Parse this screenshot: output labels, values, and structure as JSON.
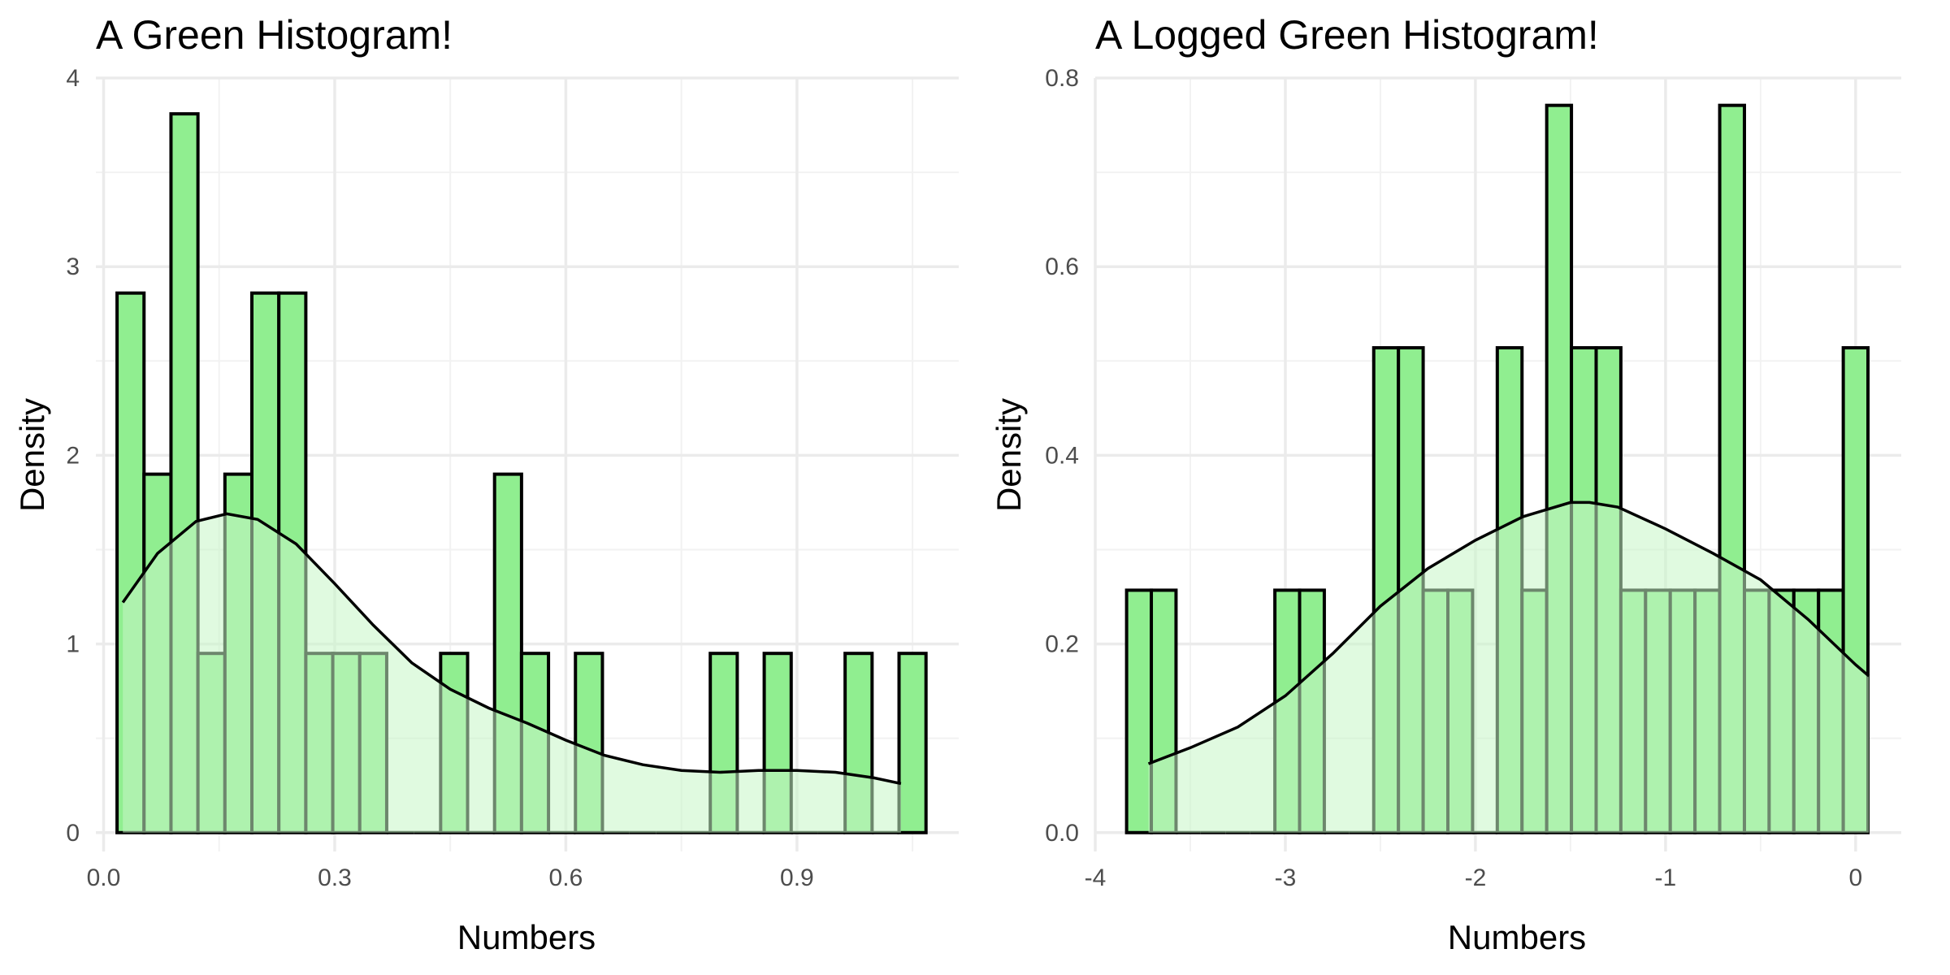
{
  "colors": {
    "bar_fill": "#90ee90",
    "density_fill": "#c6f6c6",
    "bar_outline": "#000000"
  },
  "chart_data": [
    {
      "type": "histogram",
      "title": "A Green Histogram!",
      "xlabel": "Numbers",
      "ylabel": "Density",
      "xlim": [
        -0.01,
        1.11
      ],
      "ylim": [
        -0.1,
        4.0
      ],
      "x_ticks": [
        0.0,
        0.3,
        0.6,
        0.9
      ],
      "x_tick_labels": [
        "0.0",
        "0.3",
        "0.6",
        "0.9"
      ],
      "y_ticks": [
        0,
        1,
        2,
        3,
        4
      ],
      "y_tick_labels": [
        "0",
        "1",
        "2",
        "3",
        "4"
      ],
      "grid": true,
      "bin_start": 0.0175,
      "bin_width": 0.035,
      "densities": [
        2.86,
        1.9,
        3.81,
        0.95,
        1.9,
        2.86,
        2.86,
        0.95,
        0.95,
        0.95,
        0,
        0,
        0.95,
        0,
        1.9,
        0.95,
        0,
        0.95,
        0,
        0,
        0,
        0,
        0.95,
        0,
        0.95,
        0,
        0,
        0.95,
        0,
        0.95
      ],
      "density_curve": {
        "x": [
          0.025,
          0.07,
          0.12,
          0.16,
          0.2,
          0.25,
          0.3,
          0.35,
          0.4,
          0.45,
          0.5,
          0.55,
          0.6,
          0.65,
          0.7,
          0.75,
          0.8,
          0.85,
          0.9,
          0.95,
          1.0,
          1.035
        ],
        "y": [
          1.22,
          1.48,
          1.65,
          1.69,
          1.66,
          1.53,
          1.32,
          1.1,
          0.9,
          0.76,
          0.66,
          0.58,
          0.49,
          0.41,
          0.36,
          0.33,
          0.32,
          0.33,
          0.33,
          0.32,
          0.29,
          0.26
        ]
      }
    },
    {
      "type": "histogram",
      "title": "A Logged Green Histogram!",
      "xlabel": "Numbers",
      "ylabel": "Density",
      "xlim": [
        -4.0,
        0.24
      ],
      "ylim": [
        -0.02,
        0.8
      ],
      "x_ticks": [
        -4,
        -3,
        -2,
        -1,
        0
      ],
      "x_tick_labels": [
        "-4",
        "-3",
        "-2",
        "-1",
        "0"
      ],
      "y_ticks": [
        0.0,
        0.2,
        0.4,
        0.6,
        0.8
      ],
      "y_tick_labels": [
        "0.0",
        "0.2",
        "0.4",
        "0.6",
        "0.8"
      ],
      "grid": true,
      "bin_start": -3.835,
      "bin_width": 0.13,
      "densities": [
        0.257,
        0.257,
        0,
        0,
        0,
        0,
        0.257,
        0.257,
        0,
        0,
        0.514,
        0.514,
        0.257,
        0.257,
        0,
        0.514,
        0.257,
        0.771,
        0.514,
        0.514,
        0.257,
        0.257,
        0.257,
        0.257,
        0.771,
        0.257,
        0.257,
        0.257,
        0.257,
        0.514
      ],
      "density_curve": {
        "x": [
          -3.72,
          -3.5,
          -3.25,
          -3.0,
          -2.75,
          -2.5,
          -2.25,
          -2.0,
          -1.75,
          -1.5,
          -1.4,
          -1.25,
          -1.0,
          -0.75,
          -0.5,
          -0.25,
          0.0,
          0.07
        ],
        "y": [
          0.073,
          0.09,
          0.112,
          0.145,
          0.19,
          0.24,
          0.28,
          0.31,
          0.335,
          0.35,
          0.35,
          0.345,
          0.322,
          0.296,
          0.268,
          0.226,
          0.178,
          0.166
        ]
      }
    }
  ]
}
